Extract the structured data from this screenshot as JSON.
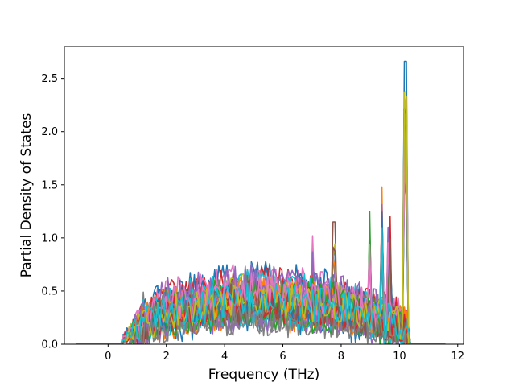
{
  "chart_data": {
    "type": "line",
    "title": "",
    "xlabel": "Frequency (THz)",
    "ylabel": "Partial Density of States",
    "xlim": [
      -1.5,
      12.2
    ],
    "ylim": [
      0.0,
      2.8
    ],
    "x_ticks": [
      0,
      2,
      4,
      6,
      8,
      10,
      12
    ],
    "y_ticks": [
      0.0,
      0.5,
      1.0,
      1.5,
      2.0,
      2.5
    ],
    "x_tick_labels": [
      "0",
      "2",
      "4",
      "6",
      "8",
      "10",
      "12"
    ],
    "y_tick_labels": [
      "0.0",
      "0.5",
      "1.0",
      "1.5",
      "2.0",
      "2.5"
    ],
    "grid": false,
    "legend": "none",
    "series_count": 40,
    "x_range": [
      -1.1,
      11.6
    ],
    "colors": [
      "#1f77b4",
      "#ff7f0e",
      "#2ca02c",
      "#d62728",
      "#9467bd",
      "#8c564b",
      "#e377c2",
      "#7f7f7f",
      "#bcbd22",
      "#17becf"
    ],
    "peaks": [
      {
        "x": 10.2,
        "y": 2.66
      },
      {
        "x": 9.4,
        "y": 1.48
      },
      {
        "x": 9.0,
        "y": 1.25
      },
      {
        "x": 9.7,
        "y": 1.2
      },
      {
        "x": 9.6,
        "y": 1.1
      },
      {
        "x": 7.75,
        "y": 1.15
      },
      {
        "x": 7.0,
        "y": 1.02
      },
      {
        "x": 1.2,
        "y": 0.49
      }
    ]
  }
}
